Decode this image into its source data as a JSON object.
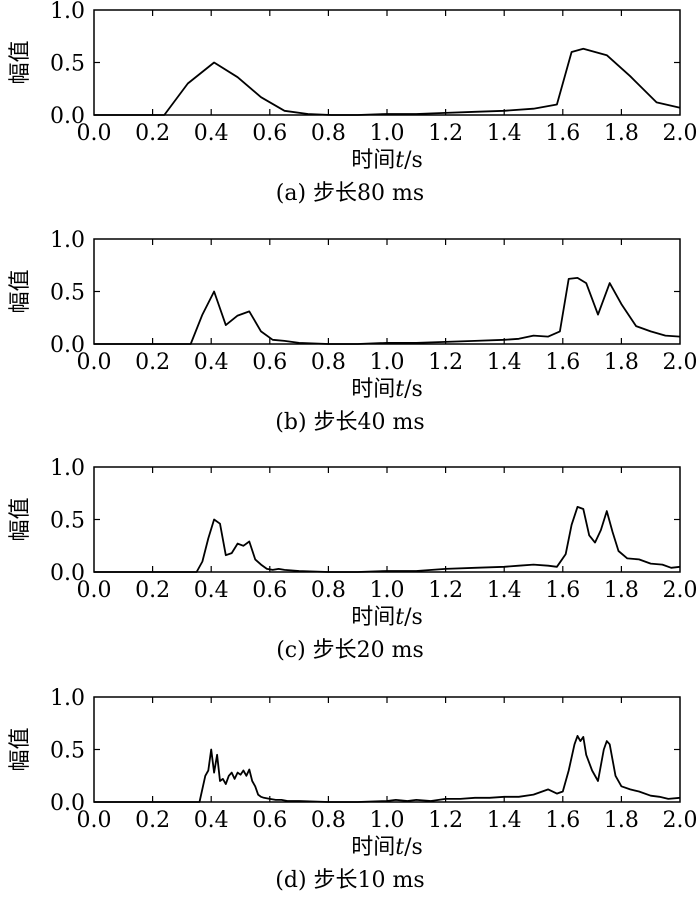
{
  "chart_data": [
    {
      "type": "line",
      "caption": "(a) 步长80 ms",
      "xlabel": "时间",
      "xlabel_var": "t",
      "xlabel_unit": "/s",
      "ylabel": "幅值",
      "xlim": [
        0.0,
        2.0
      ],
      "ylim": [
        0.0,
        1.0
      ],
      "xticks": [
        "0.0",
        "0.2",
        "0.4",
        "0.6",
        "0.8",
        "1.0",
        "1.2",
        "1.4",
        "1.6",
        "1.8",
        "2.0"
      ],
      "yticks": [
        "0.0",
        "0.5",
        "1.0"
      ],
      "x": [
        0.0,
        0.24,
        0.32,
        0.41,
        0.49,
        0.57,
        0.65,
        0.73,
        0.81,
        0.9,
        1.0,
        1.1,
        1.2,
        1.3,
        1.4,
        1.5,
        1.58,
        1.63,
        1.67,
        1.75,
        1.83,
        1.92,
        2.0
      ],
      "y": [
        0.0,
        0.0,
        0.3,
        0.5,
        0.36,
        0.17,
        0.04,
        0.01,
        0.0,
        0.0,
        0.01,
        0.01,
        0.02,
        0.03,
        0.04,
        0.06,
        0.1,
        0.6,
        0.63,
        0.57,
        0.37,
        0.12,
        0.07
      ]
    },
    {
      "type": "line",
      "caption": "(b) 步长40 ms",
      "xlabel": "时间",
      "xlabel_var": "t",
      "xlabel_unit": "/s",
      "ylabel": "幅值",
      "xlim": [
        0.0,
        2.0
      ],
      "ylim": [
        0.0,
        1.0
      ],
      "xticks": [
        "0.0",
        "0.2",
        "0.4",
        "0.6",
        "0.8",
        "1.0",
        "1.2",
        "1.4",
        "1.6",
        "1.8",
        "2.0"
      ],
      "yticks": [
        "0.0",
        "0.5",
        "1.0"
      ],
      "x": [
        0.0,
        0.33,
        0.37,
        0.41,
        0.45,
        0.49,
        0.53,
        0.57,
        0.61,
        0.65,
        0.7,
        0.8,
        0.9,
        1.0,
        1.1,
        1.2,
        1.3,
        1.4,
        1.45,
        1.5,
        1.55,
        1.59,
        1.62,
        1.65,
        1.68,
        1.72,
        1.76,
        1.8,
        1.85,
        1.9,
        1.95,
        2.0
      ],
      "y": [
        0.0,
        0.0,
        0.28,
        0.5,
        0.18,
        0.27,
        0.31,
        0.12,
        0.04,
        0.03,
        0.01,
        0.0,
        0.0,
        0.01,
        0.01,
        0.02,
        0.03,
        0.04,
        0.05,
        0.08,
        0.07,
        0.12,
        0.62,
        0.63,
        0.58,
        0.28,
        0.58,
        0.38,
        0.17,
        0.12,
        0.08,
        0.07
      ]
    },
    {
      "type": "line",
      "caption": "(c) 步长20 ms",
      "xlabel": "时间",
      "xlabel_var": "t",
      "xlabel_unit": "/s",
      "ylabel": "幅值",
      "xlim": [
        0.0,
        2.0
      ],
      "ylim": [
        0.0,
        1.0
      ],
      "xticks": [
        "0.0",
        "0.2",
        "0.4",
        "0.6",
        "0.8",
        "1.0",
        "1.2",
        "1.4",
        "1.6",
        "1.8",
        "2.0"
      ],
      "yticks": [
        "0.0",
        "0.5",
        "1.0"
      ],
      "x": [
        0.0,
        0.35,
        0.37,
        0.39,
        0.41,
        0.43,
        0.45,
        0.47,
        0.49,
        0.51,
        0.53,
        0.55,
        0.57,
        0.59,
        0.61,
        0.63,
        0.65,
        0.7,
        0.8,
        0.9,
        1.0,
        1.1,
        1.2,
        1.3,
        1.4,
        1.45,
        1.5,
        1.55,
        1.58,
        1.61,
        1.63,
        1.65,
        1.67,
        1.69,
        1.71,
        1.73,
        1.75,
        1.77,
        1.79,
        1.82,
        1.86,
        1.9,
        1.94,
        1.97,
        2.0
      ],
      "y": [
        0.0,
        0.0,
        0.1,
        0.32,
        0.5,
        0.46,
        0.16,
        0.18,
        0.27,
        0.25,
        0.29,
        0.12,
        0.07,
        0.03,
        0.02,
        0.03,
        0.02,
        0.01,
        0.0,
        0.0,
        0.01,
        0.01,
        0.03,
        0.04,
        0.05,
        0.06,
        0.07,
        0.06,
        0.05,
        0.17,
        0.45,
        0.62,
        0.6,
        0.35,
        0.28,
        0.4,
        0.58,
        0.38,
        0.2,
        0.13,
        0.12,
        0.08,
        0.07,
        0.04,
        0.05
      ]
    },
    {
      "type": "line",
      "caption": "(d) 步长10 ms",
      "xlabel": "时间",
      "xlabel_var": "t",
      "xlabel_unit": "/s",
      "ylabel": "幅值",
      "xlim": [
        0.0,
        2.0
      ],
      "ylim": [
        0.0,
        1.0
      ],
      "xticks": [
        "0.0",
        "0.2",
        "0.4",
        "0.6",
        "0.8",
        "1.0",
        "1.2",
        "1.4",
        "1.6",
        "1.8",
        "2.0"
      ],
      "yticks": [
        "0.0",
        "0.5",
        "1.0"
      ],
      "x": [
        0.0,
        0.36,
        0.38,
        0.39,
        0.4,
        0.41,
        0.42,
        0.43,
        0.44,
        0.45,
        0.46,
        0.47,
        0.48,
        0.49,
        0.5,
        0.51,
        0.52,
        0.53,
        0.54,
        0.55,
        0.56,
        0.57,
        0.58,
        0.6,
        0.62,
        0.64,
        0.66,
        0.7,
        0.8,
        0.9,
        1.0,
        1.03,
        1.07,
        1.1,
        1.15,
        1.2,
        1.25,
        1.3,
        1.35,
        1.4,
        1.45,
        1.5,
        1.55,
        1.58,
        1.6,
        1.62,
        1.64,
        1.65,
        1.66,
        1.67,
        1.68,
        1.7,
        1.72,
        1.74,
        1.75,
        1.76,
        1.78,
        1.8,
        1.83,
        1.86,
        1.9,
        1.93,
        1.96,
        2.0
      ],
      "y": [
        0.0,
        0.0,
        0.25,
        0.3,
        0.5,
        0.28,
        0.45,
        0.2,
        0.22,
        0.17,
        0.25,
        0.28,
        0.22,
        0.28,
        0.26,
        0.3,
        0.25,
        0.31,
        0.2,
        0.15,
        0.07,
        0.05,
        0.04,
        0.03,
        0.02,
        0.02,
        0.01,
        0.01,
        0.0,
        0.0,
        0.01,
        0.02,
        0.01,
        0.02,
        0.01,
        0.03,
        0.03,
        0.04,
        0.04,
        0.05,
        0.05,
        0.07,
        0.12,
        0.08,
        0.1,
        0.3,
        0.55,
        0.63,
        0.58,
        0.62,
        0.45,
        0.3,
        0.2,
        0.5,
        0.58,
        0.55,
        0.25,
        0.15,
        0.12,
        0.1,
        0.06,
        0.05,
        0.03,
        0.04
      ]
    }
  ]
}
